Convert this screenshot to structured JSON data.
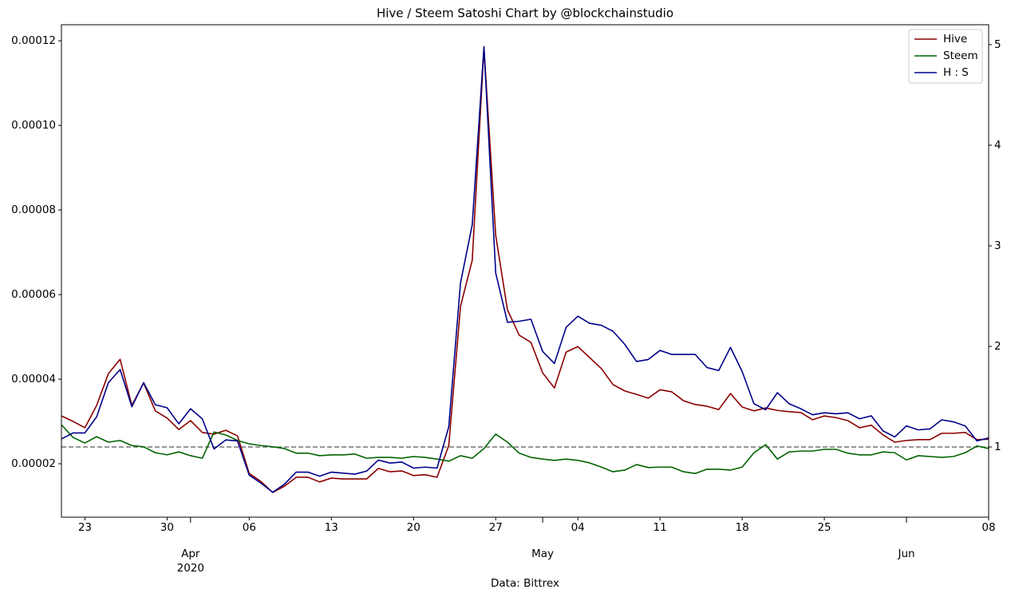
{
  "chart_data": {
    "type": "line",
    "title": "Hive / Steem Satoshi Chart by @blockchainstudio",
    "xlabel": "Data: Bittrex",
    "x": [
      "2020-03-21",
      "2020-03-22",
      "2020-03-23",
      "2020-03-24",
      "2020-03-25",
      "2020-03-26",
      "2020-03-27",
      "2020-03-28",
      "2020-03-29",
      "2020-03-30",
      "2020-03-31",
      "2020-04-01",
      "2020-04-02",
      "2020-04-03",
      "2020-04-04",
      "2020-04-05",
      "2020-04-06",
      "2020-04-07",
      "2020-04-08",
      "2020-04-09",
      "2020-04-10",
      "2020-04-11",
      "2020-04-12",
      "2020-04-13",
      "2020-04-14",
      "2020-04-15",
      "2020-04-16",
      "2020-04-17",
      "2020-04-18",
      "2020-04-19",
      "2020-04-20",
      "2020-04-21",
      "2020-04-22",
      "2020-04-23",
      "2020-04-24",
      "2020-04-25",
      "2020-04-26",
      "2020-04-27",
      "2020-04-28",
      "2020-04-29",
      "2020-04-30",
      "2020-05-01",
      "2020-05-02",
      "2020-05-03",
      "2020-05-04",
      "2020-05-05",
      "2020-05-06",
      "2020-05-07",
      "2020-05-08",
      "2020-05-09",
      "2020-05-10",
      "2020-05-11",
      "2020-05-12",
      "2020-05-13",
      "2020-05-14",
      "2020-05-15",
      "2020-05-16",
      "2020-05-17",
      "2020-05-18",
      "2020-05-19",
      "2020-05-20",
      "2020-05-21",
      "2020-05-22",
      "2020-05-23",
      "2020-05-24",
      "2020-05-25",
      "2020-05-26",
      "2020-05-27",
      "2020-05-28",
      "2020-05-29",
      "2020-05-30",
      "2020-05-31",
      "2020-06-01",
      "2020-06-02",
      "2020-06-03",
      "2020-06-04",
      "2020-06-05",
      "2020-06-06",
      "2020-06-07",
      "2020-06-08"
    ],
    "series": [
      {
        "name": "Hive",
        "color": "#8b0000",
        "axis": "y",
        "values": [
          3.13e-05,
          3e-05,
          2.85e-05,
          3.38e-05,
          4.13e-05,
          4.47e-05,
          3.38e-05,
          3.91e-05,
          3.25e-05,
          3.08e-05,
          2.81e-05,
          3.02e-05,
          2.74e-05,
          2.7e-05,
          2.79e-05,
          2.66e-05,
          1.77e-05,
          1.58e-05,
          1.32e-05,
          1.47e-05,
          1.68e-05,
          1.68e-05,
          1.57e-05,
          1.66e-05,
          1.64e-05,
          1.64e-05,
          1.64e-05,
          1.89e-05,
          1.81e-05,
          1.83e-05,
          1.72e-05,
          1.74e-05,
          1.68e-05,
          2.43e-05,
          5.72e-05,
          6.81e-05,
          0.0001183,
          7.4e-05,
          5.64e-05,
          5.04e-05,
          4.87e-05,
          4.15e-05,
          3.79e-05,
          4.64e-05,
          4.77e-05,
          4.51e-05,
          4.25e-05,
          3.87e-05,
          3.72e-05,
          3.64e-05,
          3.55e-05,
          3.75e-05,
          3.7e-05,
          3.49e-05,
          3.4e-05,
          3.36e-05,
          3.28e-05,
          3.66e-05,
          3.34e-05,
          3.25e-05,
          3.32e-05,
          3.26e-05,
          3.23e-05,
          3.21e-05,
          3.04e-05,
          3.13e-05,
          3.09e-05,
          3.02e-05,
          2.85e-05,
          2.91e-05,
          2.68e-05,
          2.51e-05,
          2.55e-05,
          2.57e-05,
          2.57e-05,
          2.72e-05,
          2.72e-05,
          2.74e-05,
          2.57e-05,
          2.58e-05
        ]
      },
      {
        "name": "Steem",
        "color": "#006400",
        "axis": "y",
        "values": [
          2.92e-05,
          2.62e-05,
          2.49e-05,
          2.64e-05,
          2.51e-05,
          2.55e-05,
          2.43e-05,
          2.4e-05,
          2.26e-05,
          2.21e-05,
          2.28e-05,
          2.19e-05,
          2.13e-05,
          2.75e-05,
          2.68e-05,
          2.55e-05,
          2.47e-05,
          2.43e-05,
          2.4e-05,
          2.36e-05,
          2.25e-05,
          2.25e-05,
          2.19e-05,
          2.21e-05,
          2.21e-05,
          2.23e-05,
          2.13e-05,
          2.15e-05,
          2.15e-05,
          2.13e-05,
          2.17e-05,
          2.15e-05,
          2.11e-05,
          2.06e-05,
          2.19e-05,
          2.13e-05,
          2.36e-05,
          2.7e-05,
          2.51e-05,
          2.25e-05,
          2.15e-05,
          2.11e-05,
          2.08e-05,
          2.11e-05,
          2.08e-05,
          2.02e-05,
          1.92e-05,
          1.81e-05,
          1.85e-05,
          1.98e-05,
          1.91e-05,
          1.92e-05,
          1.92e-05,
          1.81e-05,
          1.77e-05,
          1.87e-05,
          1.87e-05,
          1.85e-05,
          1.92e-05,
          2.26e-05,
          2.45e-05,
          2.11e-05,
          2.28e-05,
          2.3e-05,
          2.3e-05,
          2.34e-05,
          2.34e-05,
          2.25e-05,
          2.21e-05,
          2.21e-05,
          2.28e-05,
          2.26e-05,
          2.09e-05,
          2.19e-05,
          2.17e-05,
          2.15e-05,
          2.17e-05,
          2.26e-05,
          2.42e-05,
          2.36e-05
        ]
      },
      {
        "name": "H : S",
        "color": "#00008b",
        "axis": "y2",
        "values": [
          1.08,
          1.14,
          1.14,
          1.3,
          1.64,
          1.77,
          1.4,
          1.64,
          1.42,
          1.39,
          1.23,
          1.38,
          1.28,
          0.98,
          1.07,
          1.06,
          0.72,
          0.64,
          0.55,
          0.63,
          0.75,
          0.75,
          0.71,
          0.75,
          0.74,
          0.73,
          0.76,
          0.87,
          0.84,
          0.85,
          0.79,
          0.8,
          0.79,
          1.2,
          2.63,
          3.21,
          4.98,
          2.73,
          2.24,
          2.25,
          2.27,
          1.95,
          1.83,
          2.19,
          2.3,
          2.23,
          2.21,
          2.15,
          2.02,
          1.85,
          1.87,
          1.96,
          1.92,
          1.92,
          1.92,
          1.79,
          1.76,
          1.99,
          1.75,
          1.43,
          1.37,
          1.54,
          1.43,
          1.38,
          1.32,
          1.34,
          1.33,
          1.34,
          1.28,
          1.31,
          1.16,
          1.1,
          1.21,
          1.17,
          1.18,
          1.27,
          1.25,
          1.21,
          1.06,
          1.09
        ]
      }
    ],
    "hlines": [
      {
        "value": 1,
        "axis": "y2",
        "color": "#808080",
        "style": "dashed"
      }
    ],
    "xlim": [
      "2020-03-21",
      "2020-06-08"
    ],
    "xticks": [
      {
        "value": "2020-03-23",
        "label": "23"
      },
      {
        "value": "2020-03-30",
        "label": "30"
      },
      {
        "value": "2020-04-06",
        "label": "06"
      },
      {
        "value": "2020-04-13",
        "label": "13"
      },
      {
        "value": "2020-04-20",
        "label": "20"
      },
      {
        "value": "2020-04-27",
        "label": "27"
      },
      {
        "value": "2020-05-04",
        "label": "04"
      },
      {
        "value": "2020-05-11",
        "label": "11"
      },
      {
        "value": "2020-05-18",
        "label": "18"
      },
      {
        "value": "2020-05-25",
        "label": "25"
      },
      {
        "value": "2020-06-08",
        "label": "08"
      }
    ],
    "xticks_major": [
      {
        "value": "2020-04-01",
        "label": "Apr\n2020"
      },
      {
        "value": "2020-05-01",
        "label": "May"
      },
      {
        "value": "2020-06-01",
        "label": "Jun"
      }
    ],
    "ylim": [
      7.36e-06,
      0.0001238
    ],
    "yticks": [
      2e-05,
      4e-05,
      6e-05,
      8e-05,
      {
        "value": 0.0001,
        "label": "0.00010"
      },
      0.00012
    ],
    "y2lim": [
      0.302,
      5.198
    ],
    "y2ticks": [
      1,
      2,
      3,
      4,
      5
    ],
    "legend": "upper right",
    "grid": false
  }
}
